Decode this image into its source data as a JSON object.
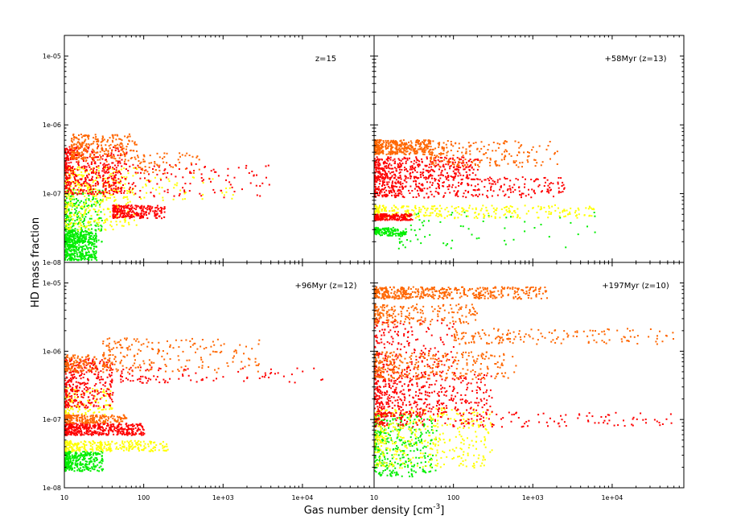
{
  "figure": {
    "xlabel": "Gas number density [cm",
    "xlabel_sup": "-3",
    "xlabel_end": "]",
    "ylabel": "HD mass fraction"
  },
  "chart_data": [
    {
      "type": "scatter",
      "annotation": "z=15",
      "x_scale": "log",
      "y_scale": "log",
      "xlim": [
        10,
        80000
      ],
      "ylim": [
        1e-08,
        2e-05
      ],
      "colors": [
        "#00ee00",
        "#ffff00",
        "#ff0000",
        "#ff6600"
      ],
      "clusters": [
        {
          "c": 0,
          "x": [
            10,
            25
          ],
          "y": [
            1.1e-08,
            3e-08
          ],
          "n": 420
        },
        {
          "c": 0,
          "x": [
            10,
            30
          ],
          "y": [
            2e-08,
            1.2e-07
          ],
          "n": 260
        },
        {
          "c": 1,
          "x": [
            10,
            80
          ],
          "y": [
            3e-08,
            2.5e-07
          ],
          "n": 380
        },
        {
          "c": 1,
          "x": [
            30,
            1500
          ],
          "y": [
            8e-08,
            1.8e-07
          ],
          "n": 70
        },
        {
          "c": 2,
          "x": [
            10,
            60
          ],
          "y": [
            1e-07,
            5e-07
          ],
          "n": 420
        },
        {
          "c": 2,
          "x": [
            40,
            180
          ],
          "y": [
            4.5e-08,
            7e-08
          ],
          "n": 260
        },
        {
          "c": 2,
          "x": [
            30,
            4000
          ],
          "y": [
            9e-08,
            2.8e-07
          ],
          "n": 160
        },
        {
          "c": 3,
          "x": [
            12,
            80
          ],
          "y": [
            3e-07,
            7.5e-07
          ],
          "n": 260
        },
        {
          "c": 3,
          "x": [
            80,
            500
          ],
          "y": [
            2e-07,
            4e-07
          ],
          "n": 60
        }
      ]
    },
    {
      "type": "scatter",
      "annotation": "+58Myr (z=13)",
      "x_scale": "log",
      "y_scale": "log",
      "xlim": [
        10,
        80000
      ],
      "ylim": [
        1e-08,
        2e-05
      ],
      "colors": [
        "#00ee00",
        "#ffff00",
        "#ff0000",
        "#ff6600"
      ],
      "clusters": [
        {
          "c": 0,
          "x": [
            10,
            25
          ],
          "y": [
            2.5e-08,
            3.3e-08
          ],
          "n": 140
        },
        {
          "c": 0,
          "x": [
            20,
            6000
          ],
          "y": [
            1.6e-08,
            5.5e-08
          ],
          "n": 70
        },
        {
          "c": 1,
          "x": [
            10,
            6000
          ],
          "y": [
            4.5e-08,
            7e-08
          ],
          "n": 300
        },
        {
          "c": 2,
          "x": [
            10,
            30
          ],
          "y": [
            4.2e-08,
            5.2e-08
          ],
          "n": 180
        },
        {
          "c": 2,
          "x": [
            10,
            2500
          ],
          "y": [
            9e-08,
            1.8e-07
          ],
          "n": 420
        },
        {
          "c": 2,
          "x": [
            10,
            200
          ],
          "y": [
            1.7e-07,
            3.5e-07
          ],
          "n": 380
        },
        {
          "c": 3,
          "x": [
            10,
            50
          ],
          "y": [
            3.8e-07,
            6.2e-07
          ],
          "n": 360
        },
        {
          "c": 3,
          "x": [
            50,
            2000
          ],
          "y": [
            2.5e-07,
            6e-07
          ],
          "n": 200
        }
      ]
    },
    {
      "type": "scatter",
      "annotation": "+96Myr (z=12)",
      "x_scale": "log",
      "y_scale": "log",
      "xlim": [
        10,
        80000
      ],
      "ylim": [
        1e-08,
        2e-05
      ],
      "colors": [
        "#00ee00",
        "#ffff00",
        "#ff0000",
        "#ff6600"
      ],
      "clusters": [
        {
          "c": 0,
          "x": [
            10,
            30
          ],
          "y": [
            1.8e-08,
            3.5e-08
          ],
          "n": 300
        },
        {
          "c": 1,
          "x": [
            10,
            200
          ],
          "y": [
            3.5e-08,
            5e-08
          ],
          "n": 260
        },
        {
          "c": 1,
          "x": [
            10,
            40
          ],
          "y": [
            1.2e-07,
            3e-07
          ],
          "n": 120
        },
        {
          "c": 2,
          "x": [
            10,
            100
          ],
          "y": [
            6e-08,
            9e-08
          ],
          "n": 420
        },
        {
          "c": 2,
          "x": [
            10,
            40
          ],
          "y": [
            1.5e-07,
            8e-07
          ],
          "n": 340
        },
        {
          "c": 2,
          "x": [
            50,
            18000
          ],
          "y": [
            3.5e-07,
            6e-07
          ],
          "n": 90
        },
        {
          "c": 3,
          "x": [
            10,
            60
          ],
          "y": [
            9e-08,
            1.2e-07
          ],
          "n": 200
        },
        {
          "c": 3,
          "x": [
            10,
            25
          ],
          "y": [
            5e-07,
            9e-07
          ],
          "n": 120
        },
        {
          "c": 3,
          "x": [
            30,
            3000
          ],
          "y": [
            5e-07,
            1.6e-06
          ],
          "n": 220
        }
      ]
    },
    {
      "type": "scatter",
      "annotation": "+197Myr (z=10)",
      "x_scale": "log",
      "y_scale": "log",
      "xlim": [
        10,
        80000
      ],
      "ylim": [
        1e-08,
        2e-05
      ],
      "colors": [
        "#00ee00",
        "#ffff00",
        "#ff0000",
        "#ff6600"
      ],
      "clusters": [
        {
          "c": 0,
          "x": [
            10,
            60
          ],
          "y": [
            1.5e-08,
            1.2e-07
          ],
          "n": 360
        },
        {
          "c": 1,
          "x": [
            10,
            300
          ],
          "y": [
            2e-08,
            1.5e-07
          ],
          "n": 420
        },
        {
          "c": 2,
          "x": [
            10,
            300
          ],
          "y": [
            1.2e-07,
            5e-07
          ],
          "n": 440
        },
        {
          "c": 2,
          "x": [
            10,
            60000
          ],
          "y": [
            8e-08,
            1.3e-07
          ],
          "n": 200
        },
        {
          "c": 2,
          "x": [
            10,
            100
          ],
          "y": [
            5e-07,
            3e-06
          ],
          "n": 200
        },
        {
          "c": 3,
          "x": [
            10,
            1500
          ],
          "y": [
            6e-06,
            9e-06
          ],
          "n": 460
        },
        {
          "c": 3,
          "x": [
            10,
            200
          ],
          "y": [
            2.5e-06,
            5e-06
          ],
          "n": 200
        },
        {
          "c": 3,
          "x": [
            100,
            60000
          ],
          "y": [
            1.3e-06,
            2.2e-06
          ],
          "n": 160
        },
        {
          "c": 3,
          "x": [
            10,
            600
          ],
          "y": [
            4e-07,
            1e-06
          ],
          "n": 300
        }
      ]
    }
  ],
  "x_tick_labels": [
    "10",
    "100",
    "1e+03",
    "1e+04"
  ],
  "y_tick_labels": [
    "1e-08",
    "1e-07",
    "1e-06",
    "1e-05"
  ]
}
